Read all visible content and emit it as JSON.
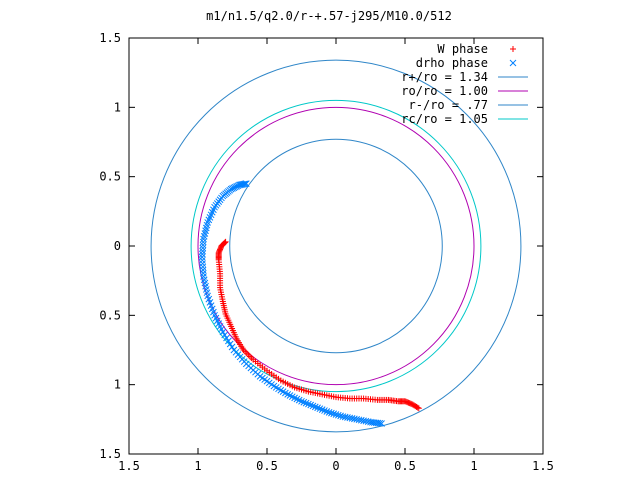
{
  "chart_data": {
    "type": "scatter",
    "title": "m1/n1.5/q2.0/r-+.57-j295/M10.0/512",
    "xlabel": "",
    "ylabel": "",
    "xlim": [
      -1.5,
      1.5
    ],
    "ylim": [
      -1.5,
      1.5
    ],
    "x_ticks": [
      -1.5,
      -1,
      -0.5,
      0,
      0.5,
      1,
      1.5
    ],
    "x_tick_labels": [
      "1.5",
      "1",
      "0.5",
      "0",
      "0.5",
      "1",
      "1.5"
    ],
    "y_ticks": [
      1.5,
      1,
      0.5,
      0,
      -0.5,
      -1,
      -1.5
    ],
    "y_tick_labels": [
      "1.5",
      "1",
      "0.5",
      "0",
      "0.5",
      "1",
      "1.5"
    ],
    "grid": false,
    "legend_position": "top-right",
    "legend": [
      {
        "label": "W phase",
        "color": "#ff0000",
        "marker": "+"
      },
      {
        "label": "drho phase",
        "color": "#0080ff",
        "marker": "x"
      },
      {
        "label": "r+/ro = 1.34",
        "color": "#2f86c8",
        "marker": "line"
      },
      {
        "label": "ro/ro = 1.00",
        "color": "#b000b0",
        "marker": "line"
      },
      {
        "label": "r-/ro = .77",
        "color": "#2f86c8",
        "marker": "line"
      },
      {
        "label": "rc/ro = 1.05",
        "color": "#00c8c8",
        "marker": "line"
      }
    ],
    "circles": [
      {
        "name": "r+/ro = 1.34",
        "radius": 1.34,
        "color": "#2f86c8"
      },
      {
        "name": "ro/ro = 1.00",
        "radius": 1.0,
        "color": "#b000b0"
      },
      {
        "name": "r-/ro = .77",
        "radius": 0.77,
        "color": "#2f86c8"
      },
      {
        "name": "rc/ro = 1.05",
        "radius": 1.05,
        "color": "#00c8c8"
      }
    ],
    "series": [
      {
        "name": "W phase",
        "color": "#ff0000",
        "marker": "+",
        "points": [
          [
            0.6,
            -1.17
          ],
          [
            0.55,
            -1.14
          ],
          [
            0.5,
            -1.12
          ],
          [
            0.45,
            -1.12
          ],
          [
            0.38,
            -1.11
          ],
          [
            0.3,
            -1.11
          ],
          [
            0.2,
            -1.1
          ],
          [
            0.1,
            -1.1
          ],
          [
            0.0,
            -1.09
          ],
          [
            -0.1,
            -1.07
          ],
          [
            -0.2,
            -1.05
          ],
          [
            -0.3,
            -1.02
          ],
          [
            -0.4,
            -0.97
          ],
          [
            -0.5,
            -0.9
          ],
          [
            -0.6,
            -0.82
          ],
          [
            -0.67,
            -0.75
          ],
          [
            -0.72,
            -0.67
          ],
          [
            -0.76,
            -0.58
          ],
          [
            -0.8,
            -0.49
          ],
          [
            -0.82,
            -0.4
          ],
          [
            -0.84,
            -0.3
          ],
          [
            -0.84,
            -0.2
          ],
          [
            -0.85,
            -0.1
          ],
          [
            -0.85,
            -0.05
          ],
          [
            -0.83,
            0.0
          ],
          [
            -0.8,
            0.03
          ]
        ]
      },
      {
        "name": "drho phase",
        "color": "#0080ff",
        "marker": "x",
        "points": [
          [
            0.33,
            -1.28
          ],
          [
            0.25,
            -1.27
          ],
          [
            0.15,
            -1.25
          ],
          [
            0.05,
            -1.23
          ],
          [
            -0.05,
            -1.2
          ],
          [
            -0.15,
            -1.16
          ],
          [
            -0.25,
            -1.12
          ],
          [
            -0.35,
            -1.07
          ],
          [
            -0.45,
            -1.01
          ],
          [
            -0.55,
            -0.94
          ],
          [
            -0.65,
            -0.85
          ],
          [
            -0.74,
            -0.75
          ],
          [
            -0.82,
            -0.62
          ],
          [
            -0.88,
            -0.5
          ],
          [
            -0.93,
            -0.36
          ],
          [
            -0.96,
            -0.22
          ],
          [
            -0.97,
            -0.08
          ],
          [
            -0.96,
            0.05
          ],
          [
            -0.93,
            0.17
          ],
          [
            -0.88,
            0.28
          ],
          [
            -0.82,
            0.36
          ],
          [
            -0.76,
            0.41
          ],
          [
            -0.7,
            0.44
          ],
          [
            -0.65,
            0.45
          ]
        ]
      }
    ]
  }
}
